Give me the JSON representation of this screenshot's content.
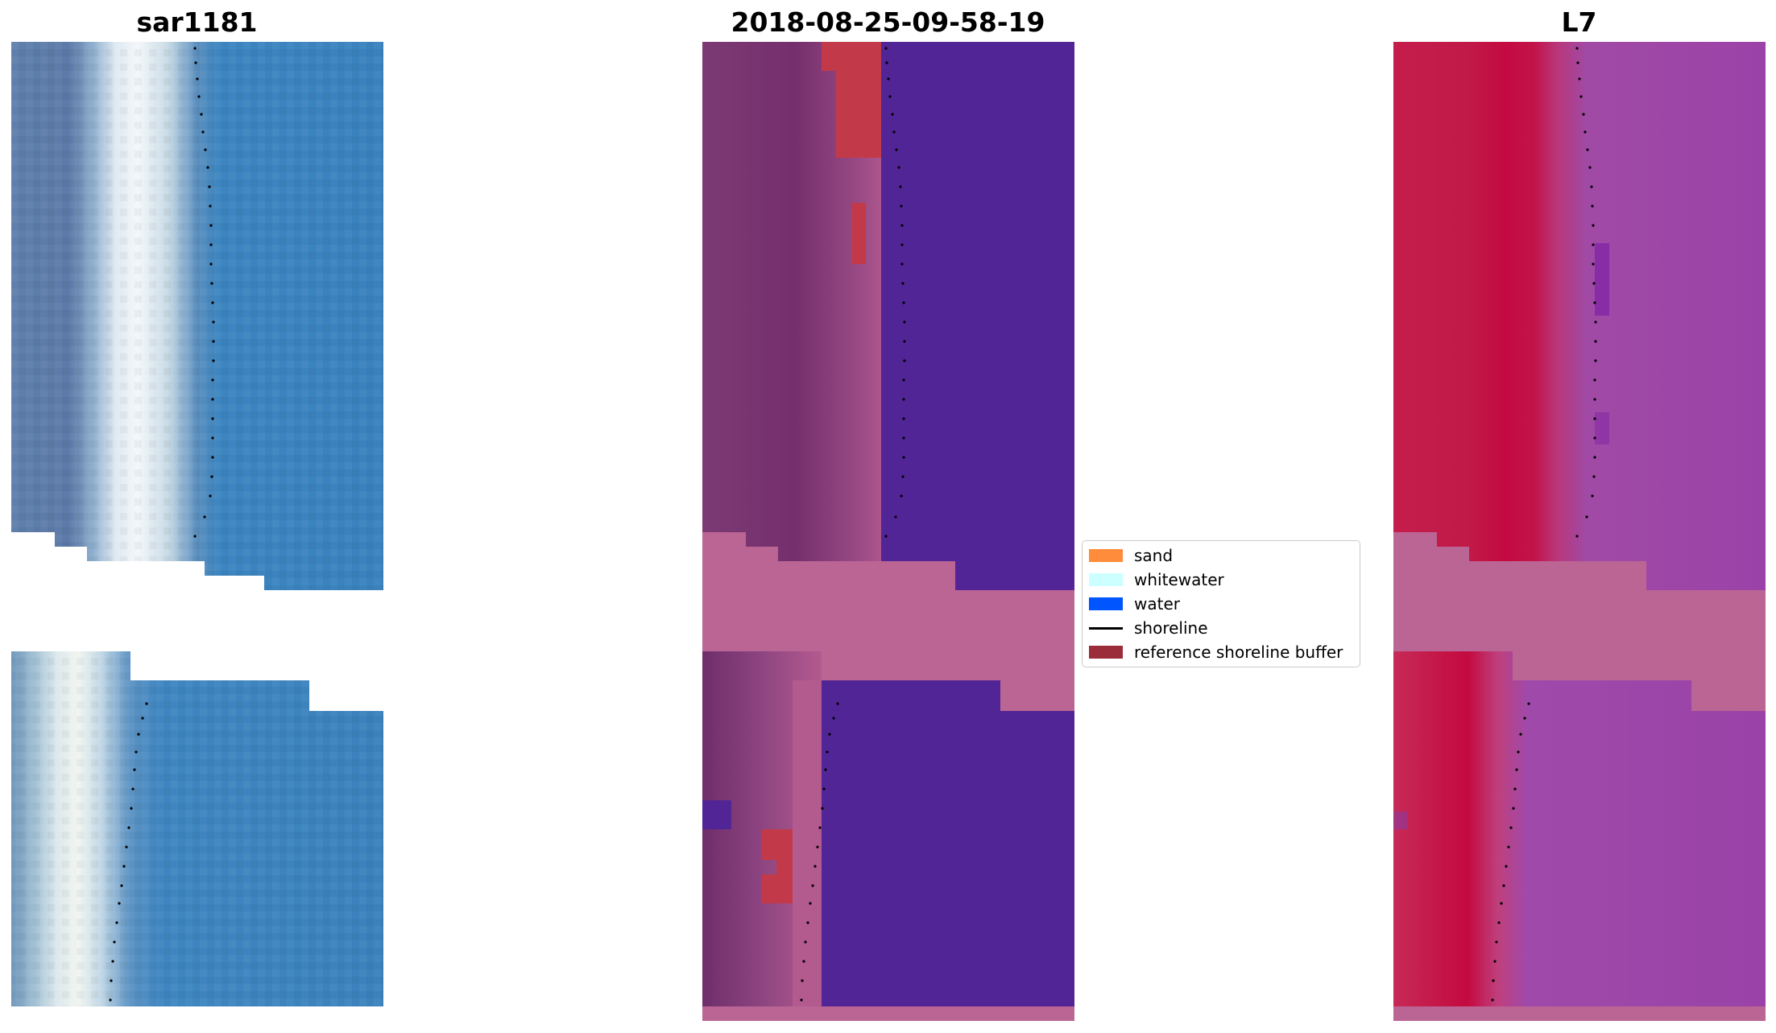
{
  "panels": {
    "left_title": "sar1181",
    "middle_title": "2018-08-25-09-58-19",
    "right_title": "L7"
  },
  "legend": {
    "items": [
      {
        "label": "sand",
        "color": "#ff8c3a",
        "kind": "patch"
      },
      {
        "label": "whitewater",
        "color": "#ccffff",
        "kind": "patch"
      },
      {
        "label": "water",
        "color": "#0055ff",
        "kind": "patch"
      },
      {
        "label": "shoreline",
        "color": "#000000",
        "kind": "line"
      },
      {
        "label": "reference shoreline buffer",
        "color": "#9b2c3a",
        "kind": "patch"
      }
    ]
  },
  "colors": {
    "rgb_ocean": "#3b82c0",
    "rgb_land": "#5b7fac",
    "rgb_whitewater": "#e8f0f5",
    "class_water": "#522596",
    "class_sand": "#b5588f",
    "class_land": "#7a3370",
    "class_buffer": "#c0394a",
    "mndwi_land": "#c41a48",
    "mndwi_water": "#9a40a8",
    "nodata_mask": "#bb6594"
  }
}
